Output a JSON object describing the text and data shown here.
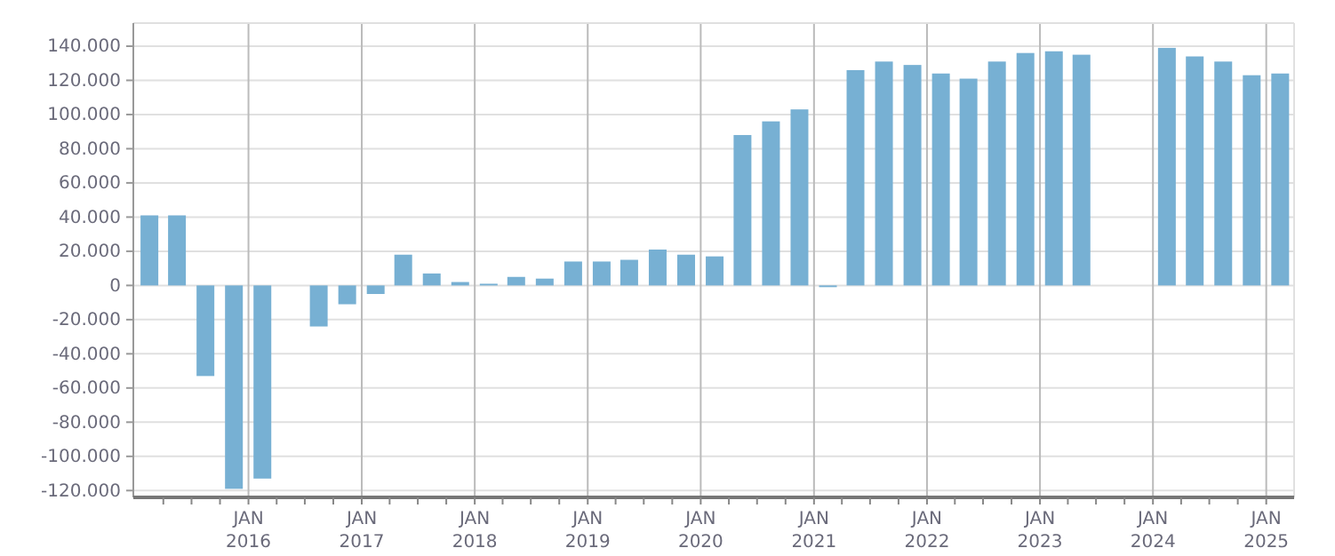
{
  "chart_data": {
    "type": "bar",
    "x": [
      "2015-02-15",
      "2015-05-15",
      "2015-08-15",
      "2015-11-15",
      "2016-02-15",
      "2016-05-15",
      "2016-08-15",
      "2016-11-15",
      "2017-02-15",
      "2017-05-15",
      "2017-08-15",
      "2017-11-15",
      "2018-02-15",
      "2018-05-15",
      "2018-08-15",
      "2018-11-15",
      "2019-02-15",
      "2019-05-15",
      "2019-08-15",
      "2019-11-15",
      "2020-02-15",
      "2020-05-15",
      "2020-08-15",
      "2020-11-15",
      "2021-02-15",
      "2021-05-15",
      "2021-08-15",
      "2021-11-15",
      "2022-02-15",
      "2022-05-15",
      "2022-08-15",
      "2022-11-15",
      "2023-02-15",
      "2023-05-15",
      "2023-08-15",
      "2023-11-15",
      "2024-02-15",
      "2024-05-15",
      "2024-08-15",
      "2024-11-15",
      "2025-02-15"
    ],
    "series": [
      {
        "color": "#77b0d3",
        "values": [
          41000,
          41000,
          -53000,
          -119000,
          -113000,
          null,
          -24000,
          -11000,
          -5000,
          18000,
          7000,
          2000,
          1000,
          5000,
          4000,
          14000,
          14000,
          15000,
          21000,
          18000,
          17000,
          88000,
          96000,
          103000,
          -1000,
          126000,
          131000,
          129000,
          124000,
          121000,
          131000,
          136000,
          137000,
          135000,
          null,
          null,
          139000,
          134000,
          131000,
          123000,
          124000
        ]
      }
    ],
    "xlim": [
      "2014-12-25",
      "2025-04-01"
    ],
    "xticks": [
      {
        "value": "2015-04-01",
        "label": null
      },
      {
        "value": "2015-07-01",
        "label": null
      },
      {
        "value": "2015-10-01",
        "label": null
      },
      {
        "value": "2016-01-01",
        "label": "JAN\n2016"
      },
      {
        "value": "2016-04-01",
        "label": null
      },
      {
        "value": "2016-07-01",
        "label": null
      },
      {
        "value": "2016-10-01",
        "label": null
      },
      {
        "value": "2017-01-01",
        "label": "JAN\n2017"
      },
      {
        "value": "2017-04-01",
        "label": null
      },
      {
        "value": "2017-07-01",
        "label": null
      },
      {
        "value": "2017-10-01",
        "label": null
      },
      {
        "value": "2018-01-01",
        "label": "JAN\n2018"
      },
      {
        "value": "2018-04-01",
        "label": null
      },
      {
        "value": "2018-07-01",
        "label": null
      },
      {
        "value": "2018-10-01",
        "label": null
      },
      {
        "value": "2019-01-01",
        "label": "JAN\n2019"
      },
      {
        "value": "2019-04-01",
        "label": null
      },
      {
        "value": "2019-07-01",
        "label": null
      },
      {
        "value": "2019-10-01",
        "label": null
      },
      {
        "value": "2020-01-01",
        "label": "JAN\n2020"
      },
      {
        "value": "2020-04-01",
        "label": null
      },
      {
        "value": "2020-07-01",
        "label": null
      },
      {
        "value": "2020-10-01",
        "label": null
      },
      {
        "value": "2021-01-01",
        "label": "JAN\n2021"
      },
      {
        "value": "2021-04-01",
        "label": null
      },
      {
        "value": "2021-07-01",
        "label": null
      },
      {
        "value": "2021-10-01",
        "label": null
      },
      {
        "value": "2022-01-01",
        "label": "JAN\n2022"
      },
      {
        "value": "2022-04-01",
        "label": null
      },
      {
        "value": "2022-07-01",
        "label": null
      },
      {
        "value": "2022-10-01",
        "label": null
      },
      {
        "value": "2023-01-01",
        "label": "JAN\n2023"
      },
      {
        "value": "2023-04-01",
        "label": null
      },
      {
        "value": "2023-07-01",
        "label": null
      },
      {
        "value": "2023-10-01",
        "label": null
      },
      {
        "value": "2024-01-01",
        "label": "JAN\n2024"
      },
      {
        "value": "2024-04-01",
        "label": null
      },
      {
        "value": "2024-07-01",
        "label": null
      },
      {
        "value": "2024-10-01",
        "label": null
      },
      {
        "value": "2025-01-01",
        "label": "JAN\n2025"
      }
    ],
    "ylim": [
      -124000,
      153500
    ],
    "yticks": [
      {
        "value": -120000,
        "label": "-120.000"
      },
      {
        "value": -100000,
        "label": "-100.000"
      },
      {
        "value": -80000,
        "label": "-80.000"
      },
      {
        "value": -60000,
        "label": "-60.000"
      },
      {
        "value": -40000,
        "label": "-40.000"
      },
      {
        "value": -20000,
        "label": "-20.000"
      },
      {
        "value": 0,
        "label": "0"
      },
      {
        "value": 20000,
        "label": "20.000"
      },
      {
        "value": 40000,
        "label": "40.000"
      },
      {
        "value": 60000,
        "label": "60.000"
      },
      {
        "value": 80000,
        "label": "80.000"
      },
      {
        "value": 100000,
        "label": "100.000"
      },
      {
        "value": 120000,
        "label": "120.000"
      },
      {
        "value": 140000,
        "label": "140.000"
      }
    ],
    "grid": true
  }
}
